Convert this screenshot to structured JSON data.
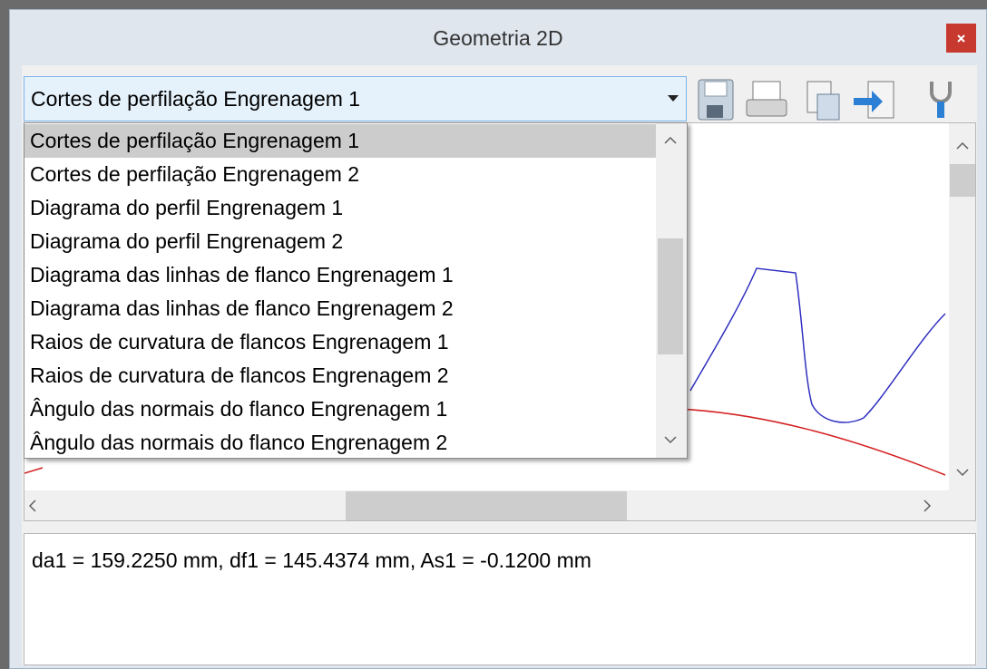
{
  "window": {
    "title": "Geometria 2D"
  },
  "combobox": {
    "selected": "Cortes de perfilação Engrenagem 1"
  },
  "dropdown": {
    "items": [
      "Cortes de perfilação Engrenagem 1",
      "Cortes de perfilação Engrenagem 2",
      "Diagrama do perfil Engrenagem 1",
      "Diagrama do perfil Engrenagem 2",
      "Diagrama das linhas de flanco Engrenagem 1",
      "Diagrama das linhas de flanco Engrenagem 2",
      "Raios de curvatura de flancos Engrenagem 1",
      "Raios de curvatura de flancos Engrenagem 2",
      "Ângulo das normais do flanco Engrenagem 1",
      "Ângulo das normais do flanco Engrenagem 2"
    ]
  },
  "status": {
    "text": "da1 = 159.2250 mm, df1 = 145.4374 mm, As1 = -0.1200 mm"
  }
}
